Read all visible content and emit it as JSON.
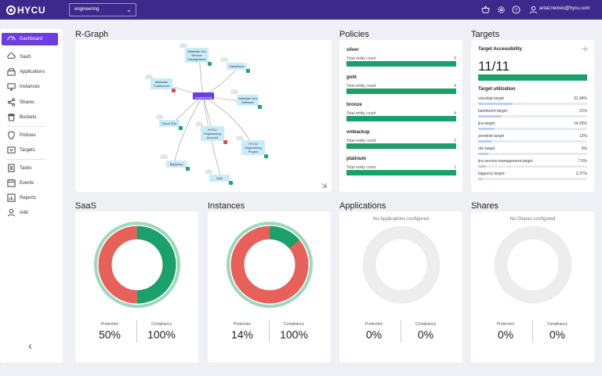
{
  "brand": {
    "name": "HYCU"
  },
  "header": {
    "tenant": "engineering",
    "icons": [
      "basket-icon",
      "settings-icon",
      "help-icon",
      "user-icon"
    ],
    "user": "antal.nemes@hycu.com"
  },
  "sidebar": {
    "items": [
      {
        "label": "Dashboard",
        "icon": "dashboard-icon",
        "active": true
      },
      {
        "label": "SaaS",
        "icon": "saas-icon"
      },
      {
        "label": "Applications",
        "icon": "applications-icon"
      },
      {
        "label": "Instances",
        "icon": "monitor-icon"
      },
      {
        "label": "Shares",
        "icon": "share-icon"
      },
      {
        "label": "Buckets",
        "icon": "bucket-icon"
      },
      {
        "label": "Policies",
        "icon": "shield-icon"
      },
      {
        "label": "Targets",
        "icon": "target-icon"
      },
      {
        "label": "Tasks",
        "icon": "tasks-icon"
      },
      {
        "label": "Events",
        "icon": "events-icon"
      },
      {
        "label": "Reports",
        "icon": "reports-icon"
      },
      {
        "label": "IAM",
        "icon": "iam-icon"
      }
    ],
    "collapse": "‹"
  },
  "rgraph": {
    "title": "R-Graph",
    "center": "engineering",
    "nodes": [
      {
        "label": "Atlassian Jira Service Management",
        "status": "ok"
      },
      {
        "label": "Salesforce",
        "status": "ok"
      },
      {
        "label": "Atlassian Confluence",
        "status": "bad"
      },
      {
        "label": "Atlassian Jira Software",
        "status": "ok"
      },
      {
        "label": "Cloud SQL",
        "status": "ok"
      },
      {
        "label": "HYCU Engineering Account",
        "status": "bad"
      },
      {
        "label": "HYCU Engineering Project",
        "status": "ok"
      },
      {
        "label": "BigQuery",
        "status": "ok"
      },
      {
        "label": "GKE",
        "status": "ok"
      }
    ]
  },
  "policies": {
    "title": "Policies",
    "count_label": "Total entity count",
    "items": [
      {
        "name": "silver",
        "count": "5"
      },
      {
        "name": "gold",
        "count": "4"
      },
      {
        "name": "bronze",
        "count": "4"
      },
      {
        "name": "vmbackup",
        "count": "2"
      },
      {
        "name": "platinum",
        "count": "1"
      }
    ]
  },
  "targets": {
    "title": "Targets",
    "accessibility_label": "Target Accessibility",
    "accessibility_value": "11/11",
    "utilization_label": "Target utilization",
    "items": [
      {
        "name": "cloudsql-target",
        "value": "31.94%",
        "fill": 0.3194
      },
      {
        "name": "bamboohr-target",
        "value": "21%",
        "fill": 0.21
      },
      {
        "name": "jira-target",
        "value": "14.25%",
        "fill": 0.1425
      },
      {
        "name": "zendesk-target",
        "value": "12%",
        "fill": 0.12
      },
      {
        "name": "rds-target",
        "value": "9%",
        "fill": 0.09
      },
      {
        "name": "jira-service-management-target",
        "value": "7.5%",
        "fill": 0.075
      },
      {
        "name": "bigquery-target",
        "value": "3.37%",
        "fill": 0.0337
      }
    ]
  },
  "widgets": {
    "protection_label": "Protection",
    "compliancy_label": "Compliancy",
    "saas": {
      "title": "SaaS",
      "protection": "50%",
      "compliancy": "100%",
      "protection_pct": 50,
      "compliancy_pct": 100,
      "note": ""
    },
    "instances": {
      "title": "Instances",
      "protection": "14%",
      "compliancy": "100%",
      "protection_pct": 14,
      "compliancy_pct": 100,
      "note": ""
    },
    "applications": {
      "title": "Applications",
      "protection": "0%",
      "compliancy": "0%",
      "protection_pct": 0,
      "compliancy_pct": 0,
      "note": "No Applications configured"
    },
    "shares": {
      "title": "Shares",
      "protection": "0%",
      "compliancy": "0%",
      "protection_pct": 0,
      "compliancy_pct": 0,
      "note": "No Shares configured"
    }
  },
  "colors": {
    "brand": "#3b2a8c",
    "accent": "#6a3ee0",
    "ok": "#1aa06a",
    "ok_light": "#9ad9bd",
    "bad": "#e8605a",
    "empty": "#ededed"
  }
}
